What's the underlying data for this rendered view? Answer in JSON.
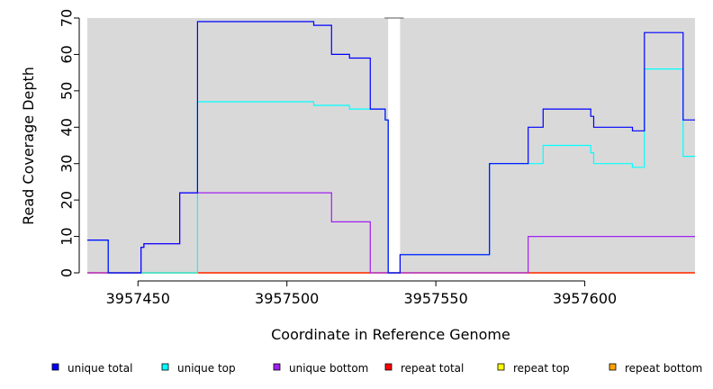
{
  "chart_data": {
    "type": "line",
    "xlabel": "Coordinate in Reference Genome",
    "ylabel": "Read Coverage Depth",
    "xlim": [
      3957433,
      3957637
    ],
    "ylim": [
      0,
      70
    ],
    "x_ticks": [
      3957450,
      3957500,
      3957550,
      3957600
    ],
    "y_ticks": [
      0,
      10,
      20,
      30,
      40,
      50,
      60,
      70
    ],
    "gap": [
      3957534,
      3957538
    ],
    "background": "#d9d9d9",
    "legend_position": "bottom",
    "series": [
      {
        "name": "unique total",
        "color": "#0000ff",
        "steps": [
          [
            3957433,
            9
          ],
          [
            3957440,
            0
          ],
          [
            3957451,
            7
          ],
          [
            3957452,
            8
          ],
          [
            3957464,
            22
          ],
          [
            3957470,
            69
          ],
          [
            3957509,
            68
          ],
          [
            3957515,
            60
          ],
          [
            3957521,
            59
          ],
          [
            3957528,
            45
          ],
          [
            3957533,
            42
          ],
          [
            3957534,
            0
          ],
          [
            3957538,
            5
          ],
          [
            3957568,
            30
          ],
          [
            3957581,
            40
          ],
          [
            3957586,
            45
          ],
          [
            3957602,
            43
          ],
          [
            3957603,
            40
          ],
          [
            3957616,
            39
          ],
          [
            3957620,
            66
          ],
          [
            3957633,
            42
          ]
        ]
      },
      {
        "name": "unique top",
        "color": "#00ffff",
        "steps": [
          [
            3957433,
            9
          ],
          [
            3957440,
            0
          ],
          [
            3957470,
            47
          ],
          [
            3957509,
            46
          ],
          [
            3957521,
            45
          ],
          [
            3957533,
            42
          ],
          [
            3957534,
            0
          ],
          [
            3957538,
            5
          ],
          [
            3957568,
            30
          ],
          [
            3957586,
            35
          ],
          [
            3957602,
            33
          ],
          [
            3957603,
            30
          ],
          [
            3957616,
            29
          ],
          [
            3957620,
            56
          ],
          [
            3957633,
            32
          ]
        ]
      },
      {
        "name": "unique bottom",
        "color": "#a020f0",
        "steps": [
          [
            3957433,
            0
          ],
          [
            3957451,
            7
          ],
          [
            3957452,
            8
          ],
          [
            3957464,
            22
          ],
          [
            3957515,
            14
          ],
          [
            3957528,
            0
          ],
          [
            3957538,
            0
          ],
          [
            3957581,
            10
          ]
        ]
      },
      {
        "name": "repeat total",
        "color": "#ff0000",
        "steps": [
          [
            3957433,
            0
          ]
        ]
      },
      {
        "name": "repeat top",
        "color": "#ffff00",
        "steps": [
          [
            3957433,
            0
          ]
        ]
      },
      {
        "name": "repeat bottom",
        "color": "#ffa500",
        "steps": [
          [
            3957433,
            0
          ]
        ]
      }
    ]
  }
}
